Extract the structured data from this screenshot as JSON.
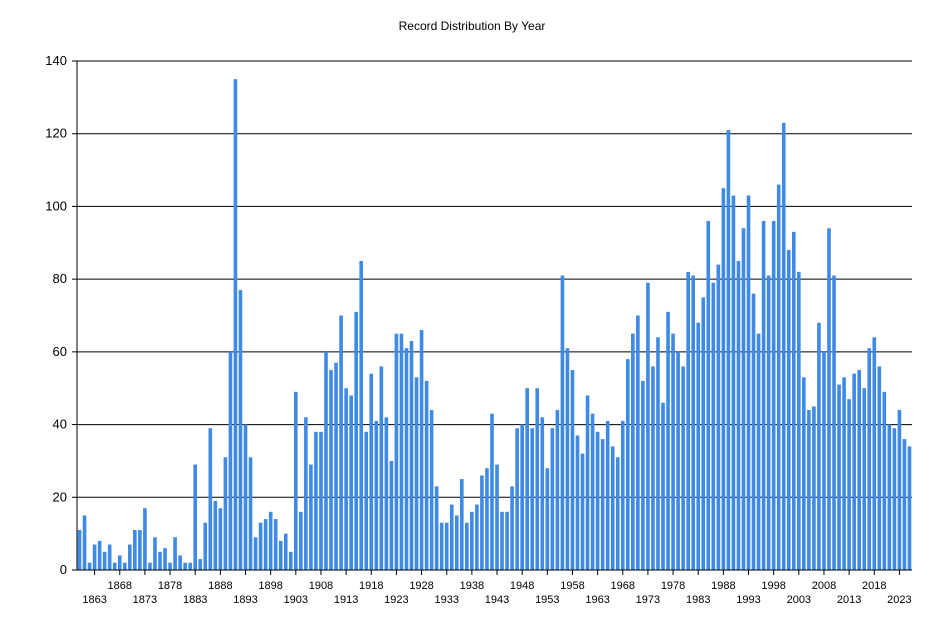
{
  "chart_data": {
    "type": "bar",
    "title": "Record Distribution By Year",
    "xlabel": "",
    "ylabel": "",
    "ylim": [
      0,
      140
    ],
    "yticks": [
      0,
      20,
      40,
      60,
      80,
      100,
      120,
      140
    ],
    "grid": "horizontal",
    "legend": "none",
    "bar_color": "#3f8ae4",
    "x_start": 1860,
    "x_end": 2024,
    "x_tick_labels_upper": [
      "1868",
      "1878",
      "1888",
      "1898",
      "1908",
      "1918",
      "1928",
      "1938",
      "1948",
      "1958",
      "1968",
      "1978",
      "1988",
      "1998",
      "2008",
      "2018"
    ],
    "x_tick_labels_lower": [
      "1863",
      "1873",
      "1883",
      "1893",
      "1903",
      "1913",
      "1923",
      "1933",
      "1943",
      "1953",
      "1963",
      "1973",
      "1983",
      "1993",
      "2003",
      "2013",
      "2023"
    ],
    "values": [
      11,
      15,
      2,
      7,
      8,
      5,
      7,
      2,
      4,
      2,
      7,
      11,
      11,
      17,
      2,
      9,
      5,
      6,
      2,
      9,
      4,
      2,
      2,
      29,
      3,
      13,
      39,
      19,
      17,
      31,
      60,
      135,
      77,
      40,
      31,
      9,
      13,
      14,
      16,
      14,
      8,
      10,
      5,
      49,
      16,
      42,
      29,
      38,
      38,
      60,
      55,
      57,
      70,
      50,
      48,
      71,
      85,
      38,
      54,
      41,
      56,
      42,
      30,
      65,
      65,
      61,
      63,
      53,
      66,
      52,
      44,
      23,
      13,
      13,
      18,
      15,
      25,
      13,
      16,
      18,
      26,
      28,
      43,
      29,
      16,
      16,
      23,
      39,
      40,
      50,
      39,
      50,
      42,
      28,
      39,
      44,
      81,
      61,
      55,
      37,
      32,
      48,
      43,
      38,
      36,
      41,
      34,
      31,
      41,
      58,
      65,
      70,
      52,
      79,
      56,
      64,
      46,
      71,
      65,
      60,
      56,
      82,
      81,
      68,
      75,
      96,
      79,
      84,
      105,
      121,
      103,
      85,
      94,
      103,
      76,
      65,
      96,
      81,
      96,
      106,
      123,
      88,
      93,
      82,
      53,
      44,
      45,
      68,
      60,
      94,
      81,
      51,
      53,
      47,
      54,
      55,
      50,
      61,
      64,
      56,
      49,
      40,
      39,
      44,
      36,
      34
    ]
  }
}
